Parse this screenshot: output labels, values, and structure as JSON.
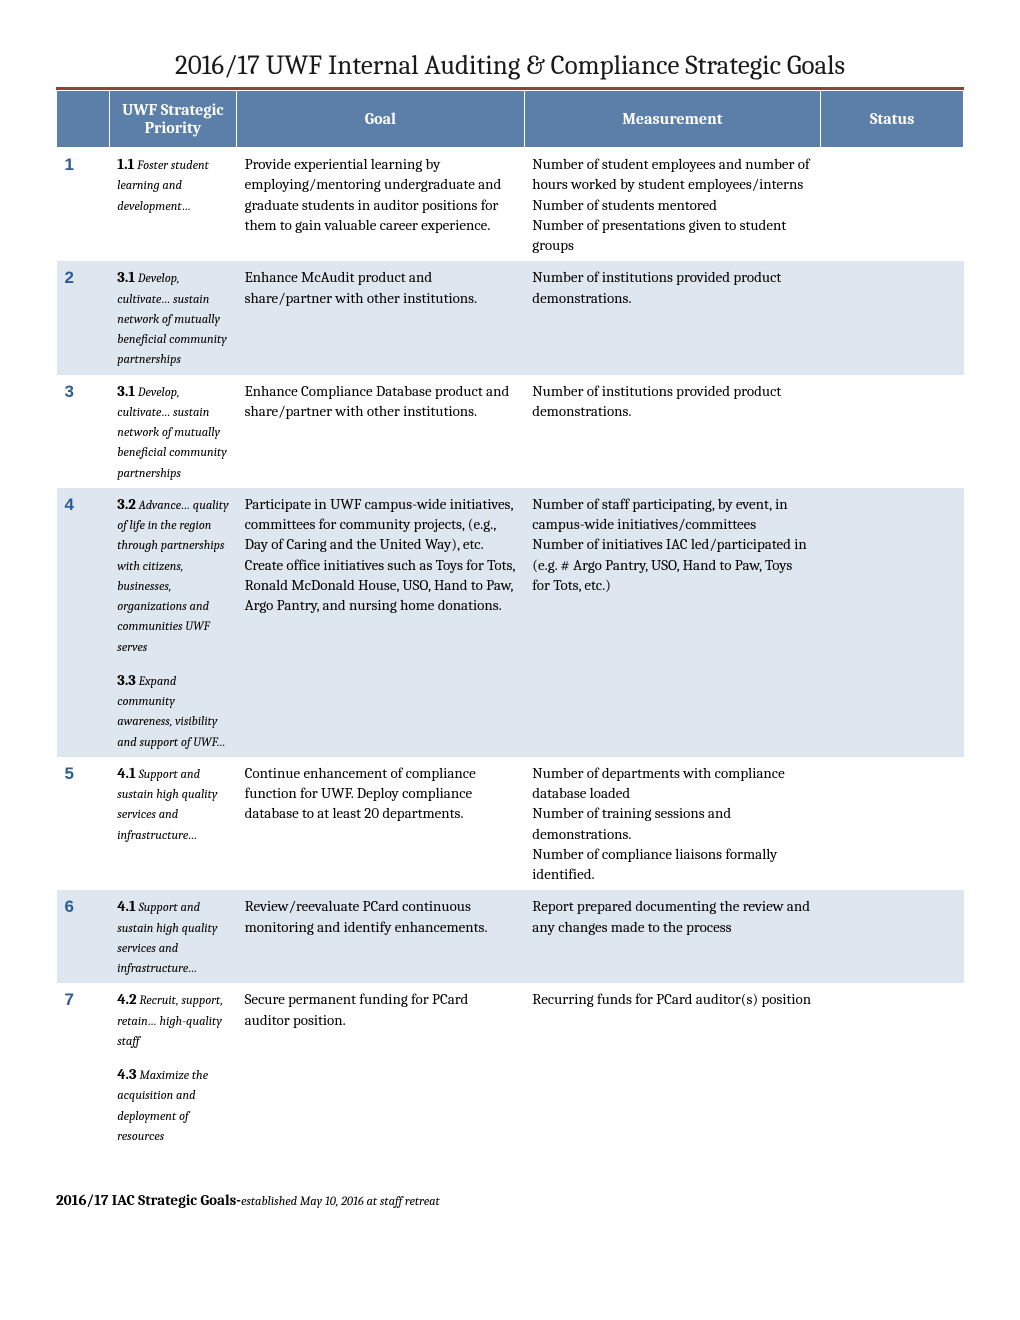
{
  "title": "2016/17 UWF Internal Auditing & Compliance Strategic Goals",
  "columns": {
    "num": "",
    "priority": "UWF Strategic Priority",
    "goal": "Goal",
    "measurement": "Measurement",
    "status": "Status"
  },
  "rows": [
    {
      "num": "1",
      "priorities": [
        {
          "num": "1.1",
          "text": " Foster student learning and development…"
        }
      ],
      "goal": "Provide experiential learning by employing/mentoring undergraduate and graduate students in auditor positions for them to gain valuable career experience.",
      "measurement": "Number of student employees and number of hours worked by student employees/interns\nNumber of students mentored\nNumber of presentations given to student groups",
      "status": ""
    },
    {
      "num": "2",
      "priorities": [
        {
          "num": "3.1",
          "text": " Develop, cultivate… sustain network of mutually beneficial community partnerships"
        }
      ],
      "goal": "Enhance McAudit product and share/partner with other institutions.",
      "measurement": "Number of institutions provided product demonstrations.",
      "status": ""
    },
    {
      "num": "3",
      "priorities": [
        {
          "num": "3.1",
          "text": " Develop, cultivate… sustain network of mutually beneficial community partnerships"
        }
      ],
      "goal": "Enhance Compliance Database product and share/partner with other institutions.",
      "measurement": "Number of institutions provided product demonstrations.",
      "status": ""
    },
    {
      "num": "4",
      "priorities": [
        {
          "num": "3.2",
          "text": " Advance… quality of life in the region through partnerships with citizens, businesses, organizations and communities UWF serves"
        },
        {
          "num": "3.3",
          "text": " Expand community awareness, visibility and support of UWF…"
        }
      ],
      "goal": "Participate in UWF campus-wide initiatives, committees for community projects, (e.g., Day of Caring and the United Way), etc. Create office initiatives such as Toys for Tots, Ronald McDonald House, USO, Hand to Paw, Argo Pantry, and nursing home donations.",
      "measurement": "Number of staff participating, by event, in campus-wide initiatives/committees\nNumber of initiatives IAC led/participated in (e.g. # Argo Pantry, USO, Hand to Paw, Toys for Tots, etc.)",
      "status": ""
    },
    {
      "num": "5",
      "priorities": [
        {
          "num": "4.1",
          "text": " Support and sustain high quality services and infrastructure…"
        }
      ],
      "goal": "Continue enhancement of compliance function for UWF. Deploy compliance database to at least 20 departments.",
      "measurement": "Number of departments with compliance database loaded\nNumber of training sessions and demonstrations.\nNumber of compliance liaisons formally identified.",
      "status": ""
    },
    {
      "num": "6",
      "priorities": [
        {
          "num": "4.1",
          "text": " Support and sustain high quality services and infrastructure…"
        }
      ],
      "goal": "Review/reevaluate PCard continuous monitoring and identify enhancements.",
      "measurement": "Report prepared documenting the review and any changes made to the process",
      "status": ""
    },
    {
      "num": "7",
      "priorities": [
        {
          "num": "4.2",
          "text": " Recruit, support, retain… high-quality staff"
        },
        {
          "num": "4.3",
          "text": " Maximize the acquisition and deployment of resources"
        }
      ],
      "goal": "Secure permanent funding for PCard auditor position.",
      "measurement": "Recurring funds for PCard auditor(s) position",
      "status": ""
    }
  ],
  "footer": {
    "bold": "2016/17 IAC Strategic Goals-",
    "italic": "established May 10, 2016 at staff retreat"
  }
}
